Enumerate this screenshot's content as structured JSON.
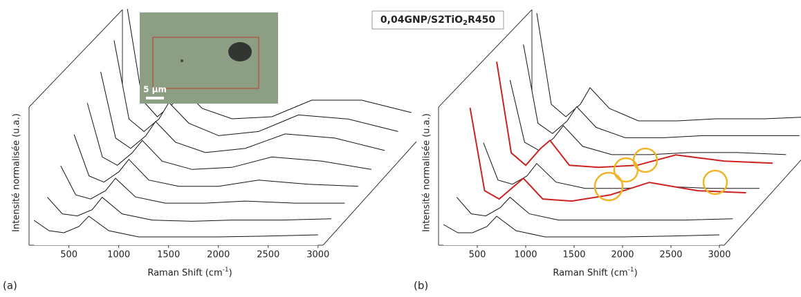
{
  "title_parts": [
    "0,04GNP/S2TiO",
    "2",
    "R450"
  ],
  "inset": {
    "scale_bar": "5 µm"
  },
  "chart_data": [
    {
      "type": "waterfall",
      "panel": "(a)",
      "xlabel_parts": [
        "Raman Shift (cm",
        "-1",
        ")"
      ],
      "ylabel": "Intensité normalisée (u.a.)",
      "xlim": [
        100,
        3050
      ],
      "xticks": [
        500,
        1000,
        1500,
        2000,
        2500,
        3000
      ],
      "x": [
        150,
        300,
        450,
        600,
        700,
        900,
        1200,
        1600,
        2000,
        2500,
        3000
      ],
      "series": [
        {
          "color": "#111111",
          "values": [
            0.6,
            0.35,
            0.3,
            0.45,
            0.7,
            0.35,
            0.2,
            0.2,
            0.2,
            0.22,
            0.25
          ]
        },
        {
          "color": "#111111",
          "values": [
            0.8,
            0.4,
            0.35,
            0.5,
            0.8,
            0.4,
            0.25,
            0.22,
            0.25,
            0.25,
            0.28
          ]
        },
        {
          "color": "#111111",
          "values": [
            1.2,
            0.5,
            0.4,
            0.6,
            0.9,
            0.45,
            0.3,
            0.3,
            0.35,
            0.3,
            0.3
          ]
        },
        {
          "color": "#111111",
          "values": [
            1.6,
            0.6,
            0.45,
            0.7,
            1.0,
            0.5,
            0.35,
            0.35,
            0.5,
            0.4,
            0.35
          ]
        },
        {
          "color": "#111111",
          "values": [
            2.0,
            0.7,
            0.5,
            0.8,
            1.1,
            0.6,
            0.4,
            0.45,
            0.7,
            0.6,
            0.4
          ]
        },
        {
          "color": "#111111",
          "values": [
            2.4,
            0.8,
            0.55,
            0.85,
            1.2,
            0.7,
            0.45,
            0.55,
            0.9,
            0.8,
            0.5
          ]
        },
        {
          "color": "#111111",
          "values": [
            2.8,
            0.9,
            0.6,
            0.9,
            1.3,
            0.8,
            0.5,
            0.6,
            1.0,
            0.9,
            0.6
          ]
        },
        {
          "color": "#111111",
          "values": [
            3.2,
            1.0,
            0.6,
            0.9,
            1.3,
            0.8,
            0.55,
            0.6,
            1.0,
            1.0,
            0.7
          ]
        }
      ]
    },
    {
      "type": "waterfall",
      "panel": "(b)",
      "xlabel_parts": [
        "Raman Shift (cm",
        "-1",
        ")"
      ],
      "ylabel": "Intensité normalisée (u.a.)",
      "xlim": [
        100,
        3050
      ],
      "xticks": [
        500,
        1000,
        1500,
        2000,
        2500,
        3000
      ],
      "x": [
        150,
        300,
        450,
        600,
        700,
        900,
        1200,
        1600,
        2000,
        2500,
        3000
      ],
      "series": [
        {
          "color": "#111111",
          "values": [
            0.5,
            0.3,
            0.3,
            0.45,
            0.7,
            0.35,
            0.2,
            0.2,
            0.2,
            0.22,
            0.25
          ]
        },
        {
          "color": "#111111",
          "values": [
            0.8,
            0.4,
            0.35,
            0.55,
            0.8,
            0.4,
            0.25,
            0.25,
            0.25,
            0.25,
            0.28
          ]
        },
        {
          "color": "#cc2222",
          "values": [
            2.6,
            0.6,
            0.4,
            0.7,
            0.9,
            0.4,
            0.35,
            0.5,
            0.8,
            0.6,
            0.55
          ]
        },
        {
          "color": "#111111",
          "values": [
            1.4,
            0.5,
            0.4,
            0.6,
            0.9,
            0.45,
            0.3,
            0.3,
            0.35,
            0.3,
            0.3
          ]
        },
        {
          "color": "#cc2222",
          "values": [
            3.0,
            0.8,
            0.5,
            0.9,
            1.1,
            0.5,
            0.45,
            0.5,
            0.75,
            0.6,
            0.55
          ]
        },
        {
          "color": "#111111",
          "values": [
            2.2,
            0.7,
            0.5,
            0.8,
            1.1,
            0.6,
            0.4,
            0.4,
            0.45,
            0.45,
            0.4
          ]
        },
        {
          "color": "#111111",
          "values": [
            2.7,
            0.8,
            0.55,
            0.85,
            1.2,
            0.7,
            0.45,
            0.45,
            0.5,
            0.5,
            0.5
          ]
        },
        {
          "color": "#111111",
          "values": [
            3.1,
            0.9,
            0.6,
            0.9,
            1.3,
            0.8,
            0.5,
            0.5,
            0.55,
            0.55,
            0.6
          ]
        }
      ]
    }
  ]
}
